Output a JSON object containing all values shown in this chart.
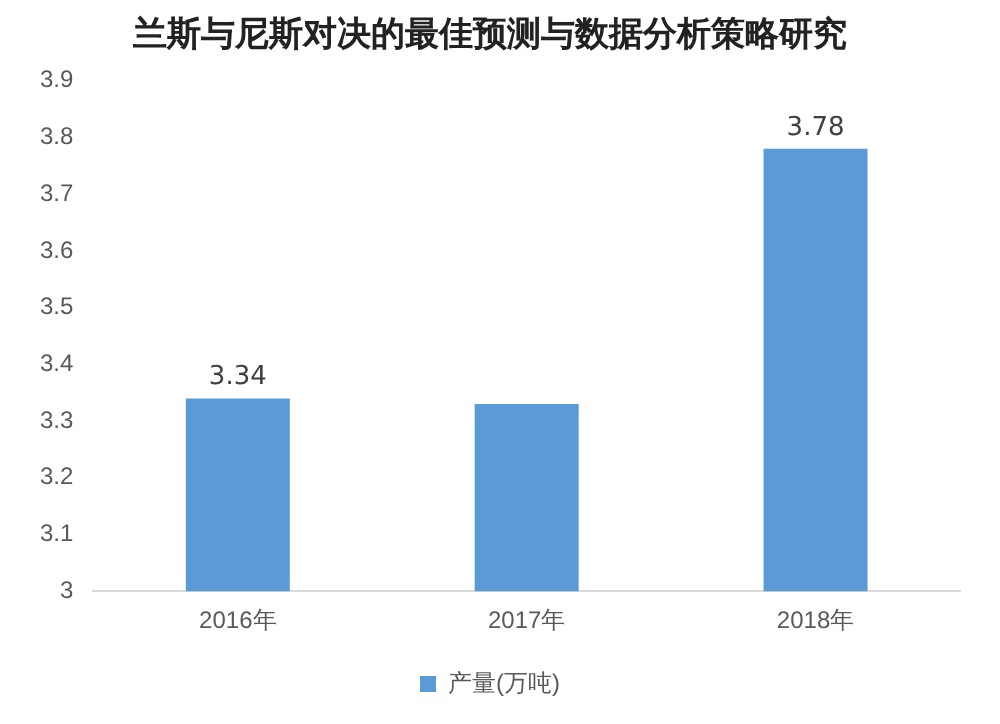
{
  "chart_data": {
    "type": "bar",
    "title": "兰斯与尼斯对决的最佳预测与数据分析策略研究",
    "categories": [
      "2016年",
      "2017年",
      "2018年"
    ],
    "series": [
      {
        "name": "产量(万吨)",
        "color": "#5b9bd5",
        "values": [
          3.34,
          3.33,
          3.78
        ],
        "value_labels": [
          "3.34",
          null,
          "3.78"
        ]
      }
    ],
    "ylim": [
      3,
      3.9
    ],
    "yticks": [
      3,
      3.1,
      3.2,
      3.3,
      3.4,
      3.5,
      3.6,
      3.7,
      3.8,
      3.9
    ],
    "grid": false,
    "legend": "bottom"
  }
}
